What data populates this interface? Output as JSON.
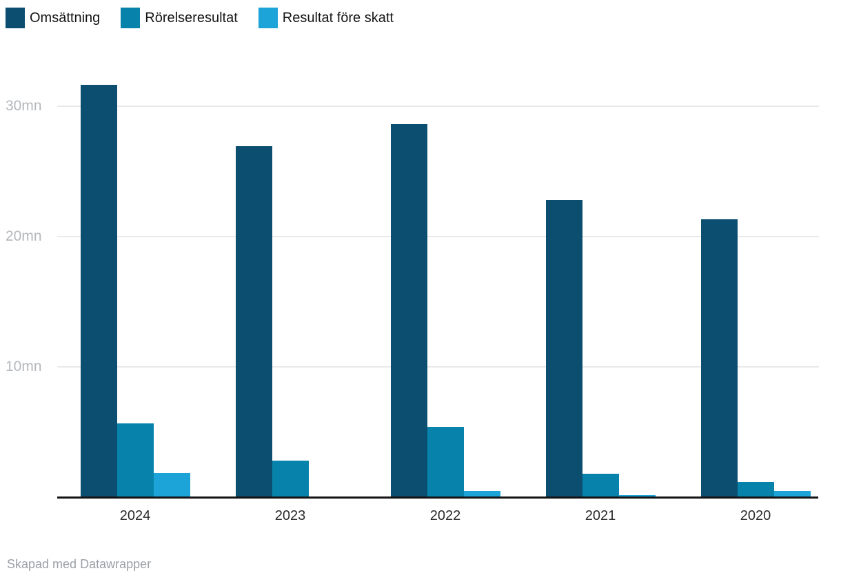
{
  "chart_data": {
    "type": "bar",
    "title": "",
    "xlabel": "",
    "ylabel": "",
    "unit": "mn",
    "categories": [
      "2024",
      "2023",
      "2022",
      "2021",
      "2020"
    ],
    "series": [
      {
        "name": "Omsättning",
        "color": "#0b4e6f",
        "values": [
          31.6,
          26.9,
          28.6,
          22.8,
          21.3
        ]
      },
      {
        "name": "Rörelseresultat",
        "color": "#0782ab",
        "values": [
          5.7,
          2.8,
          5.4,
          1.8,
          1.2
        ]
      },
      {
        "name": "Resultat före skatt",
        "color": "#1ca3d7",
        "values": [
          1.9,
          0.1,
          0.5,
          0.2,
          0.5
        ]
      }
    ],
    "y_ticks": [
      {
        "label": "10mn",
        "value": 10
      },
      {
        "label": "20mn",
        "value": 20
      },
      {
        "label": "30mn",
        "value": 30
      }
    ],
    "ylim": [
      0,
      33.5
    ],
    "grid": "horizontal",
    "legend_position": "top-left"
  },
  "colors": {
    "axis": "#141414",
    "grid": "#e9e9e9",
    "tick_label": "#b4b8bc",
    "x_label": "#2b2b2b",
    "legend_text": "#161616",
    "footer_text": "#9aa0a5",
    "background": "#ffffff"
  },
  "footer": {
    "credit": "Skapad med Datawrapper"
  }
}
